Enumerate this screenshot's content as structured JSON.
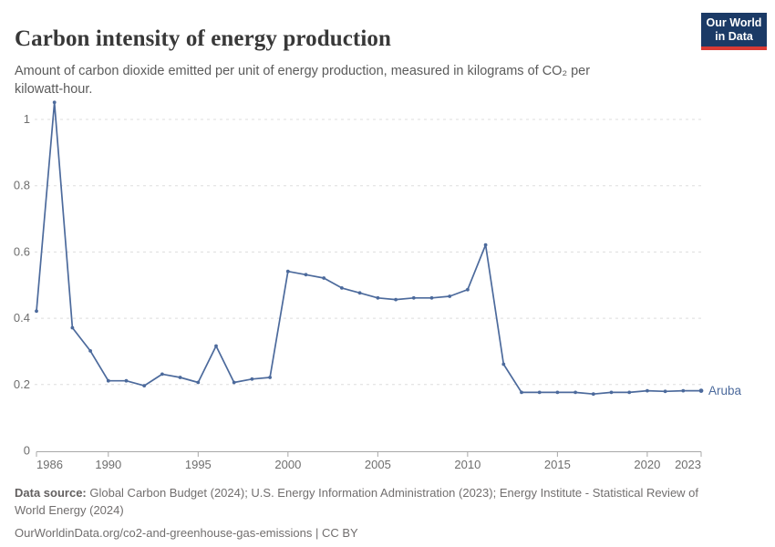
{
  "header": {
    "title": "Carbon intensity of energy production",
    "subtitle": "Amount of carbon dioxide emitted per unit of energy production, measured in kilograms of CO₂ per kilowatt-hour.",
    "logo": {
      "line1": "Our World",
      "line2": "in Data"
    }
  },
  "chart_data": {
    "type": "line",
    "title": "Carbon intensity of energy production",
    "xlabel": "",
    "ylabel": "",
    "entity_label": "Aruba",
    "series": [
      {
        "name": "Aruba",
        "color": "#4C6A9C",
        "x": [
          1986,
          1987,
          1988,
          1989,
          1990,
          1991,
          1992,
          1993,
          1994,
          1995,
          1996,
          1997,
          1998,
          1999,
          2000,
          2001,
          2002,
          2003,
          2004,
          2005,
          2006,
          2007,
          2008,
          2009,
          2010,
          2011,
          2012,
          2013,
          2014,
          2015,
          2016,
          2017,
          2018,
          2019,
          2020,
          2021,
          2022,
          2023
        ],
        "values": [
          0.42,
          1.05,
          0.37,
          0.3,
          0.21,
          0.21,
          0.195,
          0.23,
          0.22,
          0.205,
          0.315,
          0.205,
          0.215,
          0.22,
          0.54,
          0.53,
          0.52,
          0.49,
          0.475,
          0.46,
          0.455,
          0.46,
          0.46,
          0.465,
          0.485,
          0.62,
          0.26,
          0.175,
          0.175,
          0.175,
          0.175,
          0.17,
          0.175,
          0.175,
          0.18,
          0.178,
          0.18,
          0.18
        ]
      }
    ],
    "xlim": [
      1986,
      2023
    ],
    "ylim": [
      0,
      1.1
    ],
    "x_ticks": [
      1986,
      1990,
      1995,
      2000,
      2005,
      2010,
      2015,
      2020,
      2023
    ],
    "y_ticks": [
      "0",
      "0.2",
      "0.4",
      "0.6",
      "0.8",
      "1"
    ],
    "y_tick_values": [
      0,
      0.2,
      0.4,
      0.6,
      0.8,
      1
    ],
    "grid": "horizontal-dashed",
    "legend_position": "end-of-line-label"
  },
  "footer": {
    "datasource_label": "Data source:",
    "datasource_text": " Global Carbon Budget (2024); U.S. Energy Information Administration (2023); Energy Institute - Statistical Review of World Energy (2024)",
    "url_line": "OurWorldinData.org/co2-and-greenhouse-gas-emissions | CC BY"
  },
  "colors": {
    "line": "#4C6A9C",
    "grid": "#dddddd",
    "axis": "#a8a8a8",
    "tick_text": "#6e6e6e",
    "logo_bg": "#1b3a66",
    "logo_red": "#d93a34"
  }
}
